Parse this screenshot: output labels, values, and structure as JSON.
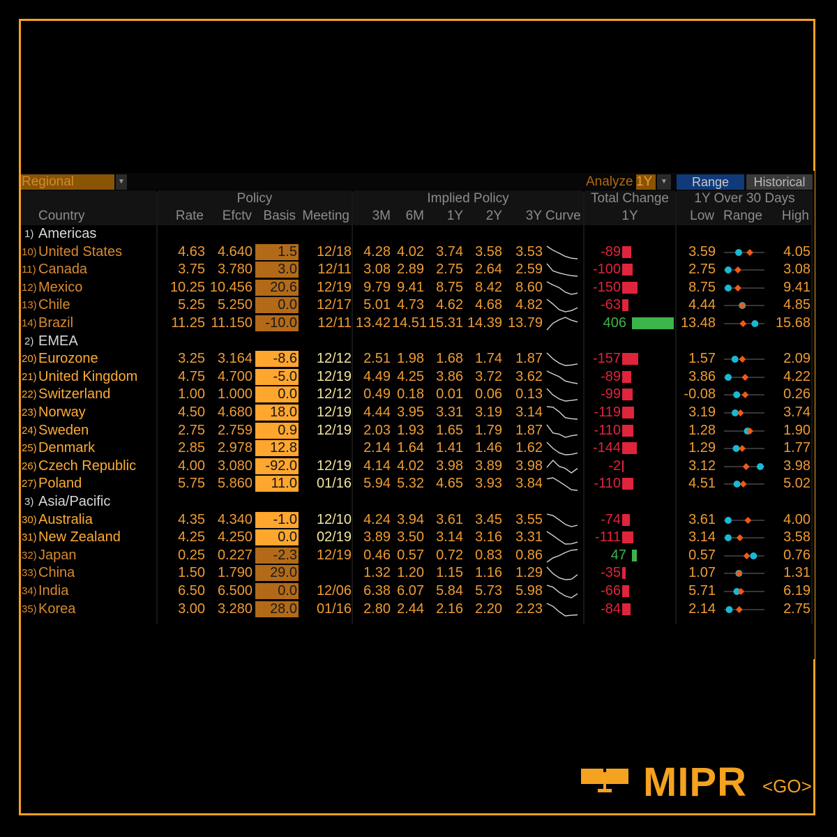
{
  "toolbar": {
    "region": "Regional",
    "analyze_label": "Analyze",
    "period": "1Y",
    "range_button": "Range",
    "historical_button": "Historical"
  },
  "headers": {
    "policy": "Policy",
    "implied_policy": "Implied Policy",
    "total_change": "Total Change",
    "over_30_days": "1Y Over 30 Days",
    "country": "Country",
    "rate": "Rate",
    "efctv": "Efctv",
    "basis": "Basis",
    "meeting": "Meeting",
    "m3": "3M",
    "m6": "6M",
    "y1": "1Y",
    "y2": "2Y",
    "y3": "3Y",
    "curve": "Curve",
    "tc_1y": "1Y",
    "low": "Low",
    "range": "Range",
    "high": "High"
  },
  "sections": [
    {
      "num": "1)",
      "name": "Americas"
    },
    {
      "num": "2)",
      "name": "EMEA"
    },
    {
      "num": "3)",
      "name": "Asia/Pacific"
    }
  ],
  "rows": [
    {
      "num": "10)",
      "country": "United States",
      "rate": "4.63",
      "efctv": "4.640",
      "basis": "1.5",
      "basis_style": "dark",
      "meeting": "12/18",
      "m3": "4.28",
      "m6": "4.02",
      "y1": "3.74",
      "y2": "3.58",
      "y3": "3.53",
      "change": "-89",
      "change_value": -89,
      "low": "3.59",
      "high": "4.05",
      "low_v": 3.59,
      "high_v": 4.05,
      "current_v": 3.74,
      "now_30d_v": 3.9,
      "curve": [
        4.63,
        4.28,
        4.02,
        3.74,
        3.58,
        3.53
      ]
    },
    {
      "num": "11)",
      "country": "Canada",
      "rate": "3.75",
      "efctv": "3.780",
      "basis": "3.0",
      "basis_style": "dark",
      "meeting": "12/11",
      "m3": "3.08",
      "m6": "2.89",
      "y1": "2.75",
      "y2": "2.64",
      "y3": "2.59",
      "change": "-100",
      "change_value": -100,
      "low": "2.75",
      "high": "3.08",
      "low_v": 2.75,
      "high_v": 3.08,
      "current_v": 2.75,
      "now_30d_v": 2.85,
      "curve": [
        3.75,
        3.08,
        2.89,
        2.75,
        2.64,
        2.59
      ]
    },
    {
      "num": "12)",
      "country": "Mexico",
      "rate": "10.25",
      "efctv": "10.456",
      "basis": "20.6",
      "basis_style": "dark",
      "meeting": "12/19",
      "m3": "9.79",
      "m6": "9.41",
      "y1": "8.75",
      "y2": "8.42",
      "y3": "8.60",
      "change": "-150",
      "change_value": -150,
      "low": "8.75",
      "high": "9.41",
      "low_v": 8.75,
      "high_v": 9.41,
      "current_v": 8.75,
      "now_30d_v": 8.95,
      "curve": [
        10.25,
        9.79,
        9.41,
        8.75,
        8.42,
        8.6
      ]
    },
    {
      "num": "13)",
      "country": "Chile",
      "rate": "5.25",
      "efctv": "5.250",
      "basis": "0.0",
      "basis_style": "dark",
      "meeting": "12/17",
      "m3": "5.01",
      "m6": "4.73",
      "y1": "4.62",
      "y2": "4.68",
      "y3": "4.82",
      "change": "-63",
      "change_value": -63,
      "low": "4.44",
      "high": "4.85",
      "low_v": 4.44,
      "high_v": 4.85,
      "current_v": 4.62,
      "now_30d_v": 4.62,
      "curve": [
        5.25,
        5.01,
        4.73,
        4.62,
        4.68,
        4.82
      ]
    },
    {
      "num": "14)",
      "country": "Brazil",
      "rate": "11.25",
      "efctv": "11.150",
      "basis": "-10.0",
      "basis_style": "dark",
      "meeting": "12/11",
      "m3": "13.42",
      "m6": "14.51",
      "y1": "15.31",
      "y2": "14.39",
      "y3": "13.79",
      "change": "406",
      "change_value": 406,
      "low": "13.48",
      "high": "15.68",
      "low_v": 13.48,
      "high_v": 15.68,
      "current_v": 15.31,
      "now_30d_v": 14.5,
      "curve": [
        11.25,
        13.42,
        14.51,
        15.31,
        14.39,
        13.79
      ]
    },
    {
      "num": "20)",
      "country": "Eurozone",
      "rate": "3.25",
      "efctv": "3.164",
      "basis": "-8.6",
      "basis_style": "bright",
      "meeting": "12/12",
      "m3": "2.51",
      "m6": "1.98",
      "y1": "1.68",
      "y2": "1.74",
      "y3": "1.87",
      "change": "-157",
      "change_value": -157,
      "low": "1.57",
      "high": "2.09",
      "low_v": 1.57,
      "high_v": 2.09,
      "current_v": 1.68,
      "now_30d_v": 1.8,
      "curve": [
        3.25,
        2.51,
        1.98,
        1.68,
        1.74,
        1.87
      ]
    },
    {
      "num": "21)",
      "country": "United Kingdom",
      "rate": "4.75",
      "efctv": "4.700",
      "basis": "-5.0",
      "basis_style": "bright",
      "meeting": "12/19",
      "m3": "4.49",
      "m6": "4.25",
      "y1": "3.86",
      "y2": "3.72",
      "y3": "3.62",
      "change": "-89",
      "change_value": -89,
      "low": "3.86",
      "high": "4.22",
      "low_v": 3.86,
      "high_v": 4.22,
      "current_v": 3.86,
      "now_30d_v": 4.05,
      "curve": [
        4.75,
        4.49,
        4.25,
        3.86,
        3.72,
        3.62
      ]
    },
    {
      "num": "22)",
      "country": "Switzerland",
      "rate": "1.00",
      "efctv": "1.000",
      "basis": "0.0",
      "basis_style": "bright",
      "meeting": "12/12",
      "m3": "0.49",
      "m6": "0.18",
      "y1": "0.01",
      "y2": "0.06",
      "y3": "0.13",
      "change": "-99",
      "change_value": -99,
      "low": "-0.08",
      "high": "0.26",
      "low_v": -0.08,
      "high_v": 0.26,
      "current_v": 0.01,
      "now_30d_v": 0.1,
      "curve": [
        1.0,
        0.49,
        0.18,
        0.01,
        0.06,
        0.13
      ]
    },
    {
      "num": "23)",
      "country": "Norway",
      "rate": "4.50",
      "efctv": "4.680",
      "basis": "18.0",
      "basis_style": "bright",
      "meeting": "12/19",
      "m3": "4.44",
      "m6": "3.95",
      "y1": "3.31",
      "y2": "3.19",
      "y3": "3.14",
      "change": "-119",
      "change_value": -119,
      "low": "3.19",
      "high": "3.74",
      "low_v": 3.19,
      "high_v": 3.74,
      "current_v": 3.31,
      "now_30d_v": 3.4,
      "curve": [
        4.5,
        4.44,
        3.95,
        3.31,
        3.19,
        3.14
      ]
    },
    {
      "num": "24)",
      "country": "Sweden",
      "rate": "2.75",
      "efctv": "2.759",
      "basis": "0.9",
      "basis_style": "bright",
      "meeting": "12/19",
      "m3": "2.03",
      "m6": "1.93",
      "y1": "1.65",
      "y2": "1.79",
      "y3": "1.87",
      "change": "-110",
      "change_value": -110,
      "low": "1.28",
      "high": "1.90",
      "low_v": 1.28,
      "high_v": 1.9,
      "current_v": 1.65,
      "now_30d_v": 1.7,
      "curve": [
        2.75,
        2.03,
        1.93,
        1.65,
        1.79,
        1.87
      ]
    },
    {
      "num": "25)",
      "country": "Denmark",
      "rate": "2.85",
      "efctv": "2.978",
      "basis": "12.8",
      "basis_style": "bright",
      "meeting": "",
      "m3": "2.14",
      "m6": "1.64",
      "y1": "1.41",
      "y2": "1.46",
      "y3": "1.62",
      "change": "-144",
      "change_value": -144,
      "low": "1.29",
      "high": "1.77",
      "low_v": 1.29,
      "high_v": 1.77,
      "current_v": 1.41,
      "now_30d_v": 1.5,
      "curve": [
        2.85,
        2.14,
        1.64,
        1.41,
        1.46,
        1.62
      ]
    },
    {
      "num": "26)",
      "country": "Czech Republic",
      "rate": "4.00",
      "efctv": "3.080",
      "basis": "-92.0",
      "basis_style": "bright",
      "meeting": "12/19",
      "m3": "4.14",
      "m6": "4.02",
      "y1": "3.98",
      "y2": "3.89",
      "y3": "3.98",
      "change": "-2",
      "change_value": -2,
      "low": "3.12",
      "high": "3.98",
      "low_v": 3.12,
      "high_v": 3.98,
      "current_v": 3.98,
      "now_30d_v": 3.6,
      "curve": [
        4.0,
        4.14,
        4.02,
        3.98,
        3.89,
        3.98
      ]
    },
    {
      "num": "27)",
      "country": "Poland",
      "rate": "5.75",
      "efctv": "5.860",
      "basis": "11.0",
      "basis_style": "bright",
      "meeting": "01/16",
      "m3": "5.94",
      "m6": "5.32",
      "y1": "4.65",
      "y2": "3.93",
      "y3": "3.84",
      "change": "-110",
      "change_value": -110,
      "low": "4.51",
      "high": "5.02",
      "low_v": 4.51,
      "high_v": 5.02,
      "current_v": 4.65,
      "now_30d_v": 4.75,
      "curve": [
        5.75,
        5.94,
        5.32,
        4.65,
        3.93,
        3.84
      ]
    },
    {
      "num": "30)",
      "country": "Australia",
      "rate": "4.35",
      "efctv": "4.340",
      "basis": "-1.0",
      "basis_style": "bright",
      "meeting": "12/10",
      "m3": "4.24",
      "m6": "3.94",
      "y1": "3.61",
      "y2": "3.45",
      "y3": "3.55",
      "change": "-74",
      "change_value": -74,
      "low": "3.61",
      "high": "4.00",
      "low_v": 3.61,
      "high_v": 4.0,
      "current_v": 3.61,
      "now_30d_v": 3.85,
      "curve": [
        4.35,
        4.24,
        3.94,
        3.61,
        3.45,
        3.55
      ]
    },
    {
      "num": "31)",
      "country": "New Zealand",
      "rate": "4.25",
      "efctv": "4.250",
      "basis": "0.0",
      "basis_style": "bright",
      "meeting": "02/19",
      "m3": "3.89",
      "m6": "3.50",
      "y1": "3.14",
      "y2": "3.16",
      "y3": "3.31",
      "change": "-111",
      "change_value": -111,
      "low": "3.14",
      "high": "3.58",
      "low_v": 3.14,
      "high_v": 3.58,
      "current_v": 3.14,
      "now_30d_v": 3.3,
      "curve": [
        4.25,
        3.89,
        3.5,
        3.14,
        3.16,
        3.31
      ]
    },
    {
      "num": "32)",
      "country": "Japan",
      "rate": "0.25",
      "efctv": "0.227",
      "basis": "-2.3",
      "basis_style": "dark",
      "meeting": "12/19",
      "m3": "0.46",
      "m6": "0.57",
      "y1": "0.72",
      "y2": "0.83",
      "y3": "0.86",
      "change": "47",
      "change_value": 47,
      "low": "0.57",
      "high": "0.76",
      "low_v": 0.57,
      "high_v": 0.76,
      "current_v": 0.72,
      "now_30d_v": 0.68,
      "curve": [
        0.25,
        0.46,
        0.57,
        0.72,
        0.83,
        0.86
      ]
    },
    {
      "num": "33)",
      "country": "China",
      "rate": "1.50",
      "efctv": "1.790",
      "basis": "29.0",
      "basis_style": "dark",
      "meeting": "",
      "m3": "1.32",
      "m6": "1.20",
      "y1": "1.15",
      "y2": "1.16",
      "y3": "1.29",
      "change": "-35",
      "change_value": -35,
      "low": "1.07",
      "high": "1.31",
      "low_v": 1.07,
      "high_v": 1.31,
      "current_v": 1.15,
      "now_30d_v": 1.15,
      "curve": [
        1.5,
        1.32,
        1.2,
        1.15,
        1.16,
        1.29
      ]
    },
    {
      "num": "34)",
      "country": "India",
      "rate": "6.50",
      "efctv": "6.500",
      "basis": "0.0",
      "basis_style": "dark",
      "meeting": "12/06",
      "m3": "6.38",
      "m6": "6.07",
      "y1": "5.84",
      "y2": "5.73",
      "y3": "5.98",
      "change": "-66",
      "change_value": -66,
      "low": "5.71",
      "high": "6.19",
      "low_v": 5.71,
      "high_v": 6.19,
      "current_v": 5.84,
      "now_30d_v": 5.9,
      "curve": [
        6.5,
        6.38,
        6.07,
        5.84,
        5.73,
        5.98
      ]
    },
    {
      "num": "35)",
      "country": "Korea",
      "rate": "3.00",
      "efctv": "3.280",
      "basis": "28.0",
      "basis_style": "dark",
      "meeting": "01/16",
      "m3": "2.80",
      "m6": "2.44",
      "y1": "2.16",
      "y2": "2.20",
      "y3": "2.23",
      "change": "-84",
      "change_value": -84,
      "low": "2.14",
      "high": "2.75",
      "low_v": 2.14,
      "high_v": 2.75,
      "current_v": 2.16,
      "now_30d_v": 2.35,
      "curve": [
        3.0,
        2.8,
        2.44,
        2.16,
        2.2,
        2.23
      ]
    }
  ],
  "logo": {
    "text": "MIPR",
    "go": "<GO>"
  },
  "colors": {
    "accent": "#f4a21f",
    "negative": "#e0243c",
    "positive": "#3cb44b",
    "range_low_marker": "#19b9d4",
    "range_current_marker": "#f05a14"
  }
}
